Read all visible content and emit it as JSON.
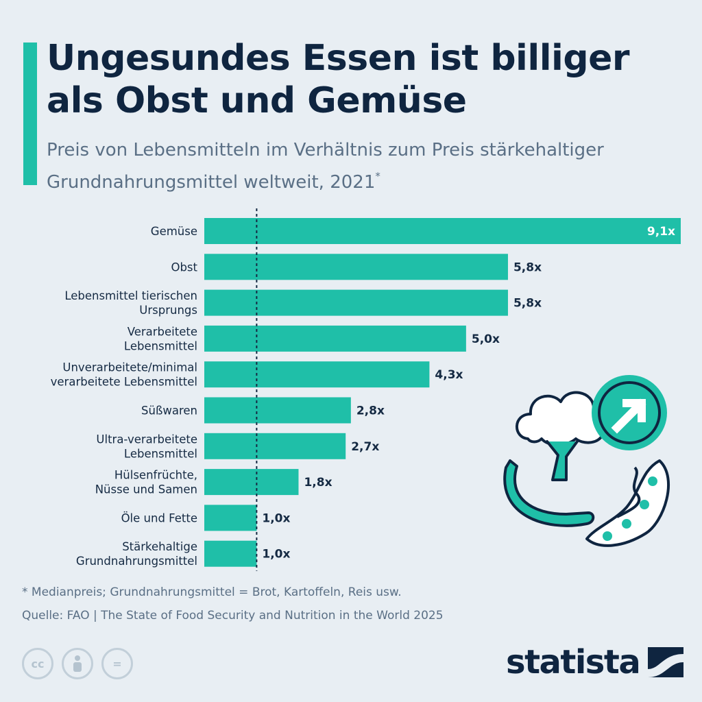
{
  "title": "Ungesundes Essen ist billiger als Obst und Gemüse",
  "subtitle": "Preis von Lebensmitteln im Verhältnis zum Preis stärkehaltiger Grundnahrungsmittel weltweit, 2021",
  "subtitle_marker": "*",
  "chart_data": {
    "type": "bar",
    "orientation": "horizontal",
    "categories": [
      [
        "Gemüse"
      ],
      [
        "Obst"
      ],
      [
        "Lebensmittel tierischen",
        "Ursprungs"
      ],
      [
        "Verarbeitete",
        "Lebensmittel"
      ],
      [
        "Unverarbeitete/minimal",
        "verarbeitete Lebensmittel"
      ],
      [
        "Süßwaren"
      ],
      [
        "Ultra-verarbeitete",
        "Lebensmittel"
      ],
      [
        "Hülsenfrüchte,",
        "Nüsse und Samen"
      ],
      [
        "Öle und Fette"
      ],
      [
        "Stärkehaltige",
        "Grundnahrungsmittel"
      ]
    ],
    "values": [
      9.1,
      5.8,
      5.8,
      5.0,
      4.3,
      2.8,
      2.7,
      1.8,
      1.0,
      1.0
    ],
    "value_labels": [
      "9,1x",
      "5,8x",
      "5,8x",
      "5,0x",
      "4,3x",
      "2,8x",
      "2,7x",
      "1,8x",
      "1,0x",
      "1,0x"
    ],
    "reference_line": 1.0,
    "xlim": [
      0,
      9.1
    ],
    "grid": false,
    "colors": {
      "bar": "#1fbfa8",
      "label": "#152a43",
      "label_inside": "#ffffff",
      "reference_line": "#152a43"
    }
  },
  "footnote": "* Medianpreis; Grundnahrungsmittel = Brot, Kartoffeln, Reis usw.",
  "source": "Quelle: FAO | The State of Food Security and Nutrition in the World 2025",
  "license_icons": [
    {
      "name": "cc-icon",
      "text": "cc"
    },
    {
      "name": "attribution-icon",
      "text": ""
    },
    {
      "name": "no-derivatives-icon",
      "text": "="
    }
  ],
  "brand": {
    "name": "statista",
    "color": "#0f2540"
  },
  "illustration": [
    "broccoli-icon",
    "banana-icon",
    "peas-pod-icon",
    "trend-up-arrow-icon"
  ]
}
